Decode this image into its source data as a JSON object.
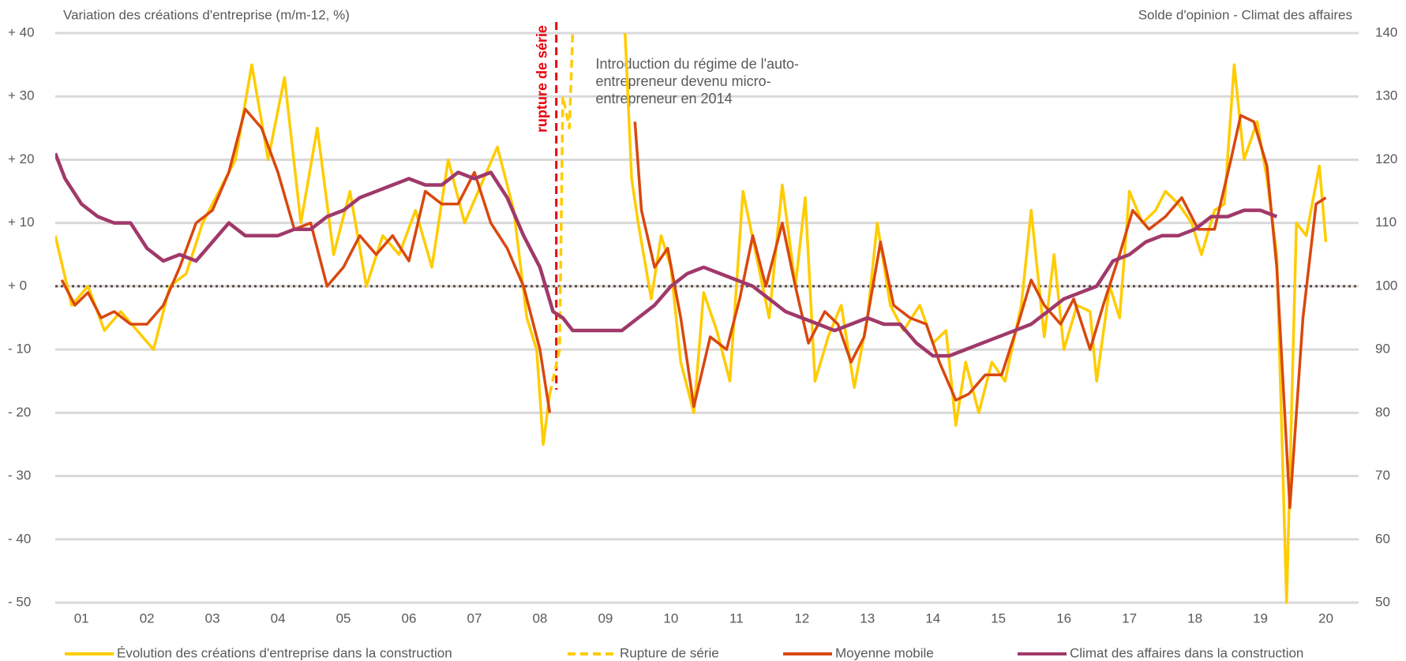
{
  "chart_data": {
    "type": "line",
    "y_title": "Variation des créations d'entreprise (m/m-12, %)",
    "y2_title": "Solde d'opinion - Climat des affaires",
    "xlim": [
      2001.1,
      2021.0
    ],
    "xticks": [
      {
        "value": 2001.5,
        "label": "01"
      },
      {
        "value": 2002.5,
        "label": "02"
      },
      {
        "value": 2003.5,
        "label": "03"
      },
      {
        "value": 2004.5,
        "label": "04"
      },
      {
        "value": 2005.5,
        "label": "05"
      },
      {
        "value": 2006.5,
        "label": "06"
      },
      {
        "value": 2007.5,
        "label": "07"
      },
      {
        "value": 2008.5,
        "label": "08"
      },
      {
        "value": 2009.5,
        "label": "09"
      },
      {
        "value": 2010.5,
        "label": "10"
      },
      {
        "value": 2011.5,
        "label": "11"
      },
      {
        "value": 2012.5,
        "label": "12"
      },
      {
        "value": 2013.5,
        "label": "13"
      },
      {
        "value": 2014.5,
        "label": "14"
      },
      {
        "value": 2015.5,
        "label": "15"
      },
      {
        "value": 2016.5,
        "label": "16"
      },
      {
        "value": 2017.5,
        "label": "17"
      },
      {
        "value": 2018.5,
        "label": "18"
      },
      {
        "value": 2019.5,
        "label": "19"
      },
      {
        "value": 2020.5,
        "label": "20"
      }
    ],
    "ylim": [
      -50,
      40
    ],
    "yticks": [
      {
        "value": 40,
        "label": "+ 40"
      },
      {
        "value": 30,
        "label": "+ 30"
      },
      {
        "value": 20,
        "label": "+ 20"
      },
      {
        "value": 10,
        "label": "+ 10"
      },
      {
        "value": 0,
        "label": "+ 0"
      },
      {
        "value": -10,
        "label": "- 10"
      },
      {
        "value": -20,
        "label": "- 20"
      },
      {
        "value": -30,
        "label": "- 30"
      },
      {
        "value": -40,
        "label": "- 40"
      },
      {
        "value": -50,
        "label": "- 50"
      }
    ],
    "y2lim": [
      50,
      140
    ],
    "y2ticks": [
      50,
      60,
      70,
      80,
      90,
      100,
      110,
      120,
      130,
      140
    ],
    "grid": true,
    "zero_line": true,
    "annotations": [
      {
        "text": "rupture de série",
        "x": 2008.75,
        "color": "#E8000B"
      },
      {
        "lines": [
          "Introduction du régime de l'auto-",
          "entrepreneur devenu micro-",
          "entrepreneur en 2014"
        ],
        "x": 2009.35,
        "y": 35
      }
    ],
    "series": [
      {
        "name": "Évolution des créations d'entreprise dans la construction",
        "color": "#FFCC00",
        "dash": false,
        "axis": "y",
        "x": [
          2001.1,
          2001.35,
          2001.6,
          2001.85,
          2002.1,
          2002.35,
          2002.6,
          2002.85,
          2003.1,
          2003.35,
          2003.6,
          2003.85,
          2004.1,
          2004.35,
          2004.6,
          2004.85,
          2005.1,
          2005.35,
          2005.6,
          2005.85,
          2006.1,
          2006.35,
          2006.6,
          2006.85,
          2007.1,
          2007.35,
          2007.6,
          2007.85,
          2008.1,
          2008.3,
          2008.45,
          2008.55,
          2008.65,
          2009.4,
          2009.8,
          2009.9,
          2010.0,
          2010.2,
          2010.35,
          2010.5,
          2010.65,
          2010.85,
          2011.0,
          2011.2,
          2011.4,
          2011.6,
          2011.8,
          2012.0,
          2012.2,
          2012.4,
          2012.55,
          2012.7,
          2012.9,
          2013.1,
          2013.3,
          2013.5,
          2013.65,
          2013.85,
          2014.05,
          2014.3,
          2014.5,
          2014.7,
          2014.85,
          2015.0,
          2015.2,
          2015.4,
          2015.6,
          2015.85,
          2016.0,
          2016.2,
          2016.35,
          2016.5,
          2016.7,
          2016.9,
          2017.0,
          2017.2,
          2017.35,
          2017.5,
          2017.7,
          2017.9,
          2018.05,
          2018.25,
          2018.45,
          2018.6,
          2018.8,
          2018.95,
          2019.1,
          2019.25,
          2019.45,
          2019.6,
          2019.75,
          2019.9,
          2020.05,
          2020.2,
          2020.4,
          2020.5
        ],
        "values": [
          8,
          -3,
          0,
          -7,
          -4,
          -7,
          -10,
          0,
          2,
          10,
          15,
          20,
          35,
          20,
          33,
          10,
          25,
          5,
          15,
          0,
          8,
          5,
          12,
          3,
          20,
          10,
          16,
          22,
          12,
          -5,
          -10,
          -25,
          -17,
          null,
          40,
          17,
          10,
          -2,
          8,
          3,
          -12,
          -20,
          -1,
          -7,
          -15,
          15,
          5,
          -5,
          16,
          0,
          14,
          -15,
          -8,
          -3,
          -16,
          -5,
          10,
          -3,
          -7,
          -3,
          -9,
          -7,
          -22,
          -12,
          -20,
          -12,
          -15,
          -3,
          12,
          -8,
          5,
          -10,
          -3,
          -4,
          -15,
          0,
          -5,
          15,
          10,
          12,
          15,
          13,
          10,
          5,
          12,
          13,
          35,
          20,
          26,
          17,
          5,
          -50,
          10,
          8,
          19,
          7
        ]
      },
      {
        "name": "Rupture de série",
        "color": "#FFCC00",
        "dash": true,
        "axis": "y",
        "x": [
          2008.65,
          2008.8,
          2008.85,
          2008.95,
          2009.0
        ],
        "values": [
          -17,
          -10,
          30,
          25,
          40
        ]
      },
      {
        "name": "Moyenne mobile",
        "color": "#D9480F",
        "dash": false,
        "axis": "y",
        "x": [
          2001.2,
          2001.4,
          2001.6,
          2001.8,
          2002.0,
          2002.25,
          2002.5,
          2002.75,
          2003.0,
          2003.25,
          2003.5,
          2003.75,
          2004.0,
          2004.25,
          2004.5,
          2004.75,
          2005.0,
          2005.25,
          2005.5,
          2005.75,
          2006.0,
          2006.25,
          2006.5,
          2006.75,
          2007.0,
          2007.25,
          2007.5,
          2007.75,
          2008.0,
          2008.25,
          2008.5,
          2008.65,
          2009.4,
          2009.95,
          2010.05,
          2010.25,
          2010.45,
          2010.65,
          2010.85,
          2011.1,
          2011.35,
          2011.55,
          2011.75,
          2011.95,
          2012.2,
          2012.4,
          2012.6,
          2012.85,
          2013.05,
          2013.25,
          2013.45,
          2013.7,
          2013.9,
          2014.15,
          2014.4,
          2014.6,
          2014.85,
          2015.05,
          2015.3,
          2015.55,
          2015.8,
          2016.0,
          2016.2,
          2016.45,
          2016.65,
          2016.9,
          2017.1,
          2017.35,
          2017.55,
          2017.8,
          2018.05,
          2018.3,
          2018.55,
          2018.8,
          2019.05,
          2019.2,
          2019.4,
          2019.6,
          2019.75,
          2019.95,
          2020.15,
          2020.35,
          2020.5
        ],
        "values": [
          1,
          -3,
          -1,
          -5,
          -4,
          -6,
          -6,
          -3,
          3,
          10,
          12,
          18,
          28,
          25,
          18,
          9,
          10,
          0,
          3,
          8,
          5,
          8,
          4,
          15,
          13,
          13,
          18,
          10,
          6,
          0,
          -10,
          -20,
          null,
          26,
          12,
          3,
          6,
          -5,
          -19,
          -8,
          -10,
          -2,
          8,
          0,
          10,
          0,
          -9,
          -4,
          -6,
          -12,
          -8,
          7,
          -3,
          -5,
          -6,
          -12,
          -18,
          -17,
          -14,
          -14,
          -6,
          1,
          -3,
          -6,
          -2,
          -10,
          -3,
          5,
          12,
          9,
          11,
          14,
          9,
          9,
          20,
          27,
          26,
          19,
          3,
          -35,
          -5,
          13,
          14
        ]
      },
      {
        "name": "Climat des affaires dans la construction",
        "color": "#A0396A",
        "dash": false,
        "axis": "y2",
        "x": [
          2001.1,
          2001.25,
          2001.5,
          2001.75,
          2002.0,
          2002.25,
          2002.5,
          2002.75,
          2003.0,
          2003.25,
          2003.5,
          2003.75,
          2004.0,
          2004.25,
          2004.5,
          2004.75,
          2005.0,
          2005.25,
          2005.5,
          2005.75,
          2006.0,
          2006.25,
          2006.5,
          2006.75,
          2007.0,
          2007.25,
          2007.5,
          2007.75,
          2008.0,
          2008.25,
          2008.5,
          2008.7,
          2008.85,
          2009.0,
          2009.25,
          2009.5,
          2009.75,
          2010.0,
          2010.25,
          2010.5,
          2010.75,
          2011.0,
          2011.25,
          2011.5,
          2011.75,
          2012.0,
          2012.25,
          2012.5,
          2012.75,
          2013.0,
          2013.25,
          2013.5,
          2013.75,
          2014.0,
          2014.25,
          2014.5,
          2014.75,
          2015.0,
          2015.25,
          2015.5,
          2015.75,
          2016.0,
          2016.25,
          2016.5,
          2016.75,
          2017.0,
          2017.25,
          2017.5,
          2017.75,
          2018.0,
          2018.25,
          2018.5,
          2018.75,
          2019.0,
          2019.25,
          2019.5,
          2019.75
        ],
        "values": [
          121,
          117,
          113,
          111,
          110,
          110,
          106,
          104,
          105,
          104,
          107,
          110,
          108,
          108,
          108,
          109,
          109,
          111,
          112,
          114,
          115,
          116,
          117,
          116,
          116,
          118,
          117,
          118,
          114,
          108,
          103,
          96,
          95,
          93,
          93,
          93,
          93,
          95,
          97,
          100,
          102,
          103,
          102,
          101,
          100,
          98,
          96,
          95,
          94,
          93,
          94,
          95,
          94,
          94,
          91,
          89,
          89,
          90,
          91,
          92,
          93,
          94,
          96,
          98,
          99,
          100,
          104,
          105,
          107,
          108,
          108,
          109,
          111,
          111,
          112,
          112,
          111
        ]
      }
    ]
  }
}
